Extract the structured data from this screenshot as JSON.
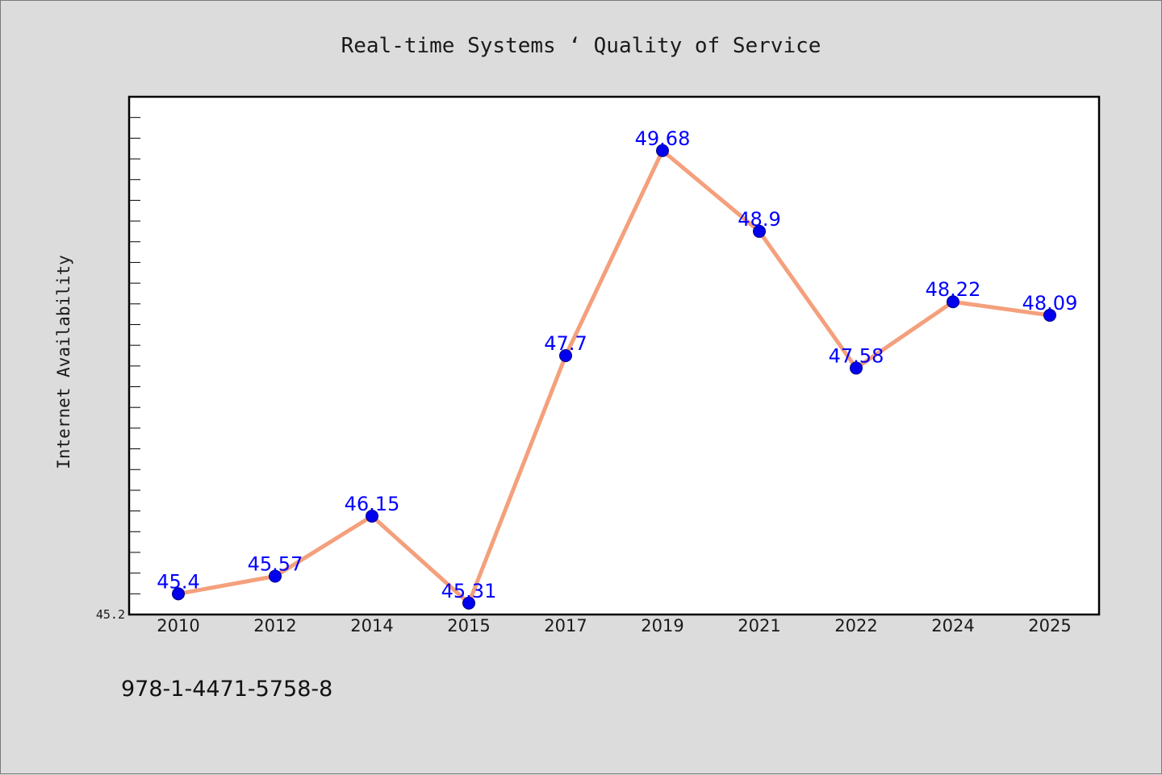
{
  "chart_data": {
    "type": "line",
    "title": "Real-time Systems ‘ Quality of Service",
    "ylabel": "Internet Availability",
    "xlabel": "",
    "categories": [
      "2010",
      "2012",
      "2014",
      "2015",
      "2017",
      "2019",
      "2021",
      "2022",
      "2024",
      "2025"
    ],
    "series": [
      {
        "values": [
          45.4,
          45.57,
          46.15,
          45.31,
          47.7,
          49.68,
          48.9,
          47.58,
          48.22,
          48.09
        ],
        "labels": [
          "45.4",
          "45.57",
          "46.15",
          "45.31",
          "47.7",
          "49.68",
          "48.9",
          "47.58",
          "48.22",
          "48.09"
        ],
        "line_color": "#f4a07c",
        "marker_color": "#0000ee"
      }
    ],
    "ylim": [
      45.2,
      50.2
    ],
    "yticks": [
      "45.2"
    ],
    "grid": false,
    "legend": "none",
    "background": "#ffffff",
    "page_background": "#dcdcdc"
  },
  "footer": {
    "isbn": "978-1-4471-5758-8"
  }
}
